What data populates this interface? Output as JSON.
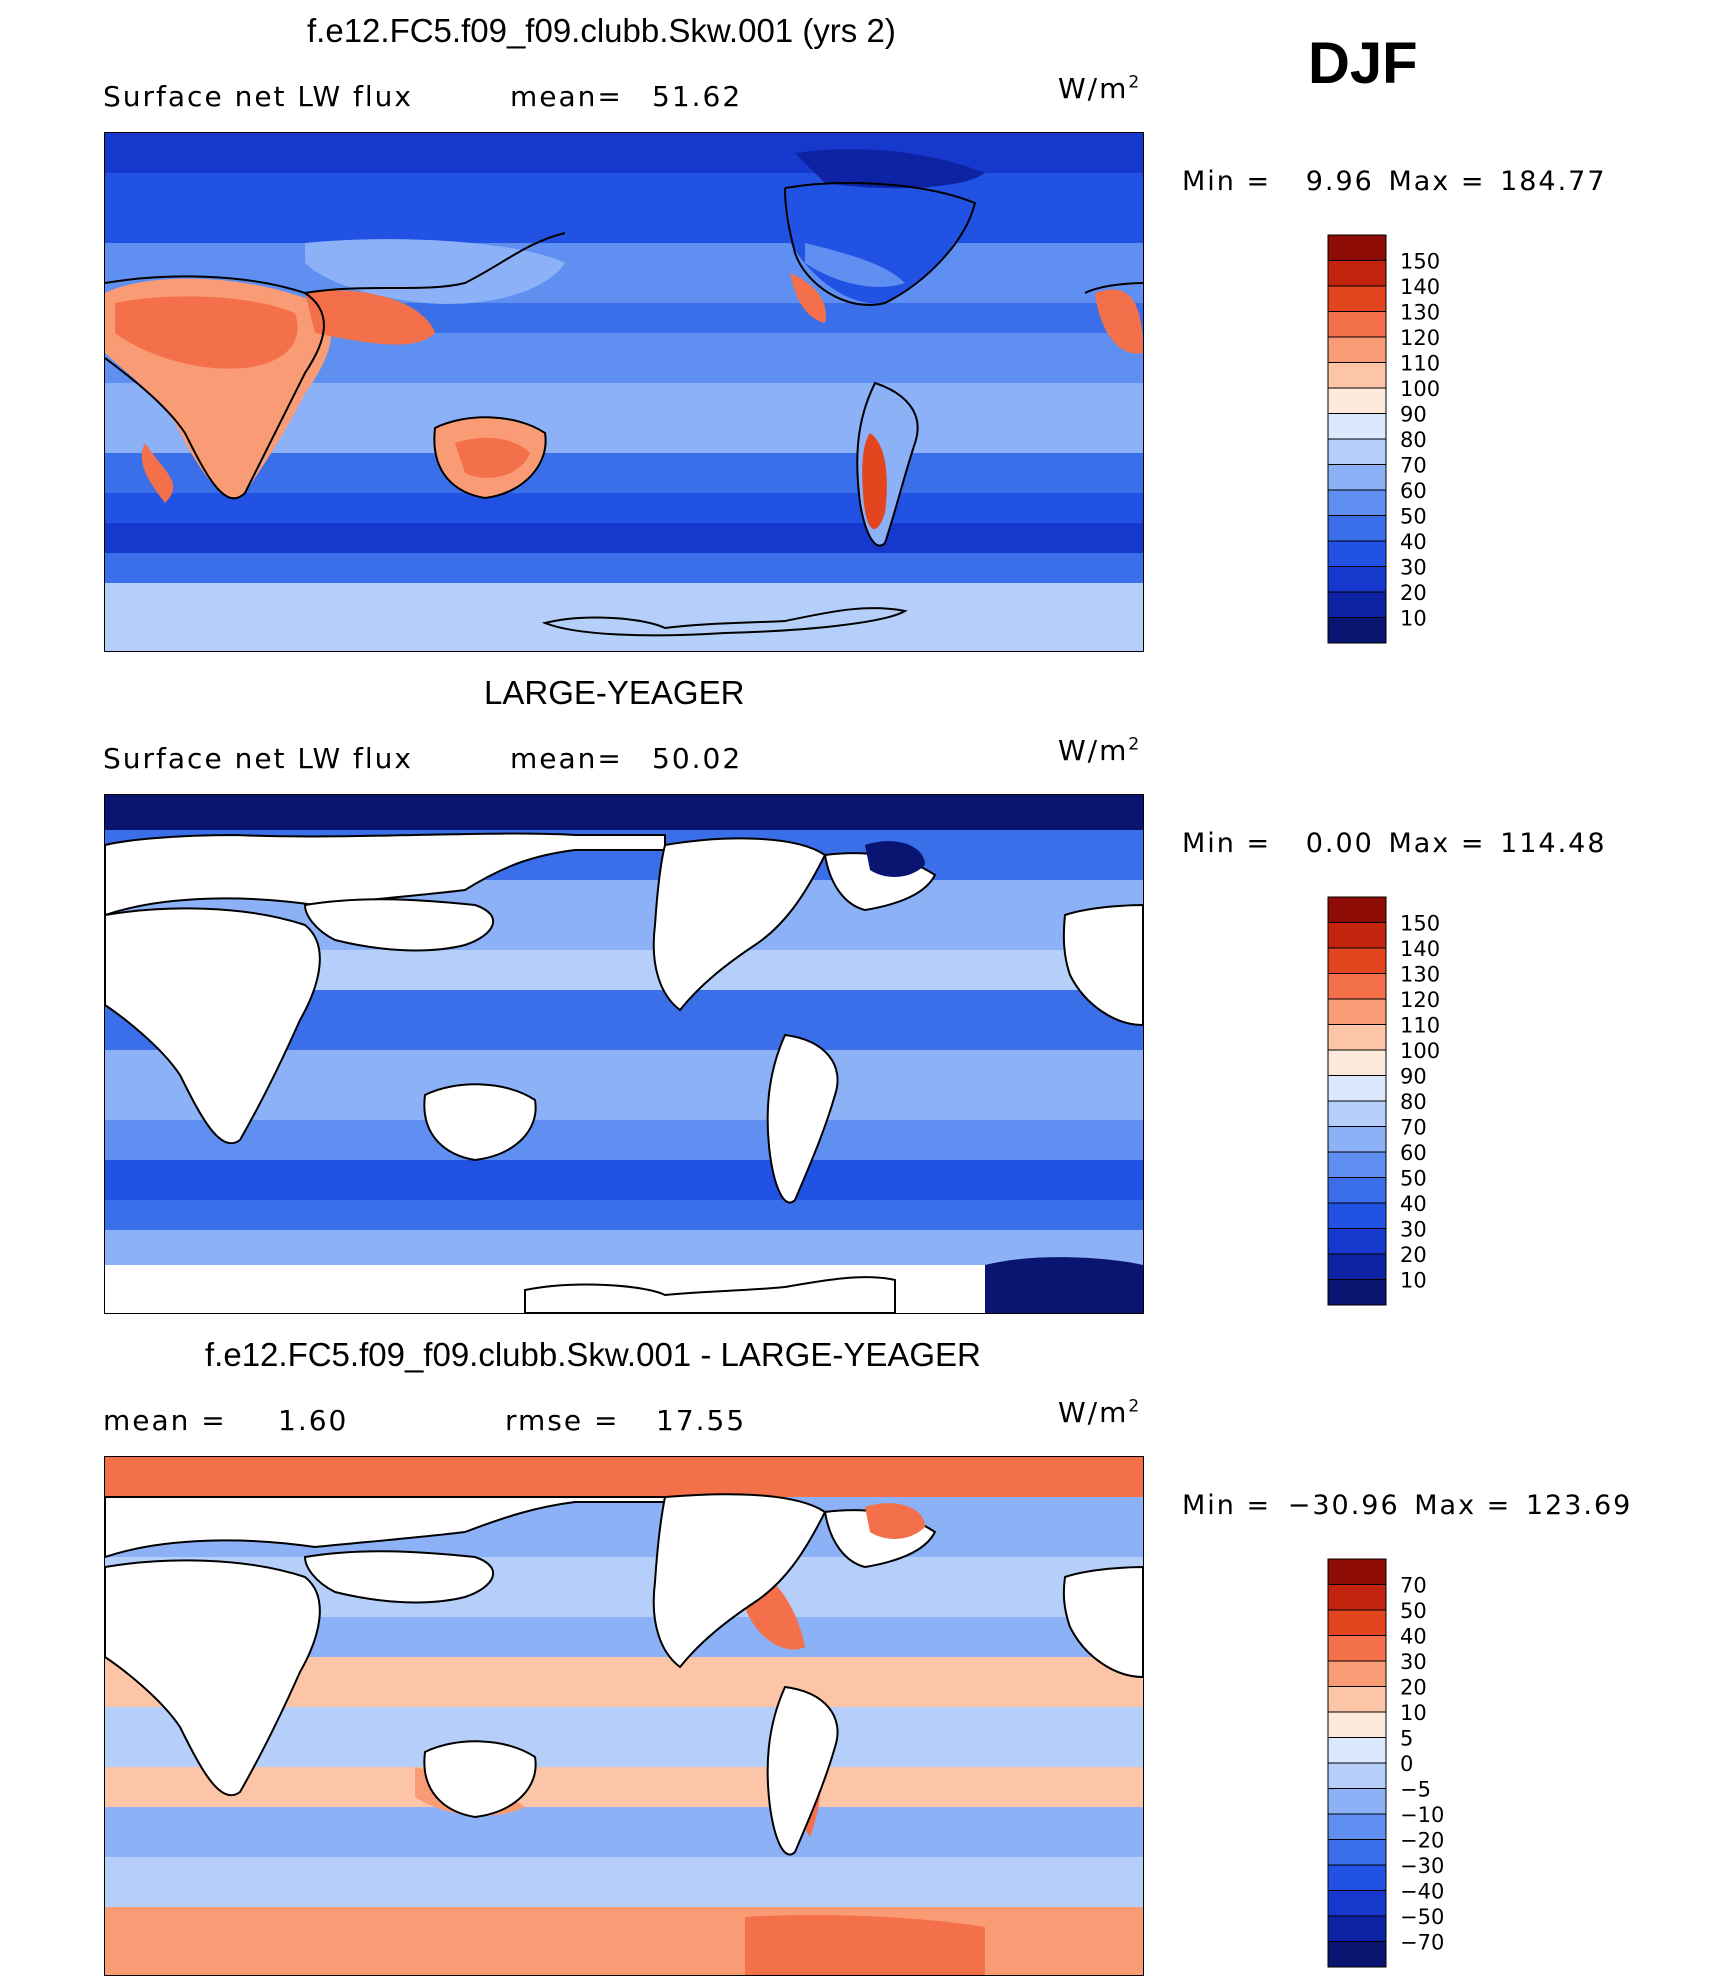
{
  "season": "DJF",
  "units_base": "W/m",
  "units_exp": "2",
  "palette": {
    "levels15": [
      "#0a1572",
      "#0d23a4",
      "#1638cc",
      "#2152e4",
      "#3b6fea",
      "#5f8ff0",
      "#8cb1f6",
      "#b6cffa",
      "#dbe8fd",
      "#fdeadb",
      "#fcc5a7",
      "#f99c76",
      "#f4704a",
      "#e3461f",
      "#c22410",
      "#8e0c06"
    ],
    "levels16": [
      "#0a1572",
      "#0d23a4",
      "#1638cc",
      "#2152e4",
      "#3b6fea",
      "#5f8ff0",
      "#8cb1f6",
      "#b6cffa",
      "#dbe8fd",
      "#fdeadb",
      "#fcc5a7",
      "#f99c76",
      "#f4704a",
      "#e3461f",
      "#c22410",
      "#8e0c06"
    ],
    "land": "#ffffff",
    "coast": "#000000"
  },
  "panels": [
    {
      "title": "f.e12.FC5.f09_f09.clubb.Skw.001 (yrs 2)",
      "variable": "Surface net LW flux",
      "stat_label": "mean=",
      "stat_value": "51.62",
      "min_label": "Min =",
      "min_value": "9.96",
      "max_label": "Max =",
      "max_value": "184.77",
      "colorbar_labels": [
        "150",
        "140",
        "130",
        "120",
        "110",
        "100",
        "90",
        "80",
        "70",
        "60",
        "50",
        "40",
        "30",
        "20",
        "10"
      ]
    },
    {
      "title": "LARGE-YEAGER",
      "variable": "Surface net LW flux",
      "stat_label": "mean=",
      "stat_value": "50.02",
      "min_label": "Min =",
      "min_value": "0.00",
      "max_label": "Max =",
      "max_value": "114.48",
      "colorbar_labels": [
        "150",
        "140",
        "130",
        "120",
        "110",
        "100",
        "90",
        "80",
        "70",
        "60",
        "50",
        "40",
        "30",
        "20",
        "10"
      ]
    },
    {
      "title": "f.e12.FC5.f09_f09.clubb.Skw.001 - LARGE-YEAGER",
      "mean_label": "mean =",
      "mean_value": "1.60",
      "rmse_label": "rmse =",
      "rmse_value": "17.55",
      "min_label": "Min =",
      "min_value": "−30.96",
      "max_label": "Max =",
      "max_value": "123.69",
      "colorbar_labels": [
        "70",
        "50",
        "40",
        "30",
        "20",
        "10",
        "5",
        "0",
        "−5",
        "−10",
        "−20",
        "−30",
        "−40",
        "−50",
        "−70"
      ]
    }
  ],
  "chart_data": [
    {
      "type": "heatmap",
      "title": "f.e12.FC5.f09_f09.clubb.Skw.001 (yrs 2)",
      "field": "Surface net LW flux",
      "units": "W/m2",
      "projection": "cylindrical equidistant, centered 180",
      "mean": 51.62,
      "min": 9.96,
      "max": 184.77,
      "contour_levels": [
        10,
        20,
        30,
        40,
        50,
        60,
        70,
        80,
        90,
        100,
        110,
        120,
        130,
        140,
        150
      ]
    },
    {
      "type": "heatmap",
      "title": "LARGE-YEAGER",
      "field": "Surface net LW flux",
      "units": "W/m2",
      "projection": "cylindrical equidistant, centered 180",
      "mean": 50.02,
      "min": 0.0,
      "max": 114.48,
      "contour_levels": [
        10,
        20,
        30,
        40,
        50,
        60,
        70,
        80,
        90,
        100,
        110,
        120,
        130,
        140,
        150
      ]
    },
    {
      "type": "heatmap",
      "title": "f.e12.FC5.f09_f09.clubb.Skw.001 - LARGE-YEAGER",
      "field": "difference",
      "units": "W/m2",
      "projection": "cylindrical equidistant, centered 180",
      "mean": 1.6,
      "rmse": 17.55,
      "min": -30.96,
      "max": 123.69,
      "contour_levels": [
        -70,
        -50,
        -40,
        -30,
        -20,
        -10,
        -5,
        0,
        5,
        10,
        20,
        30,
        40,
        50,
        70
      ]
    }
  ]
}
